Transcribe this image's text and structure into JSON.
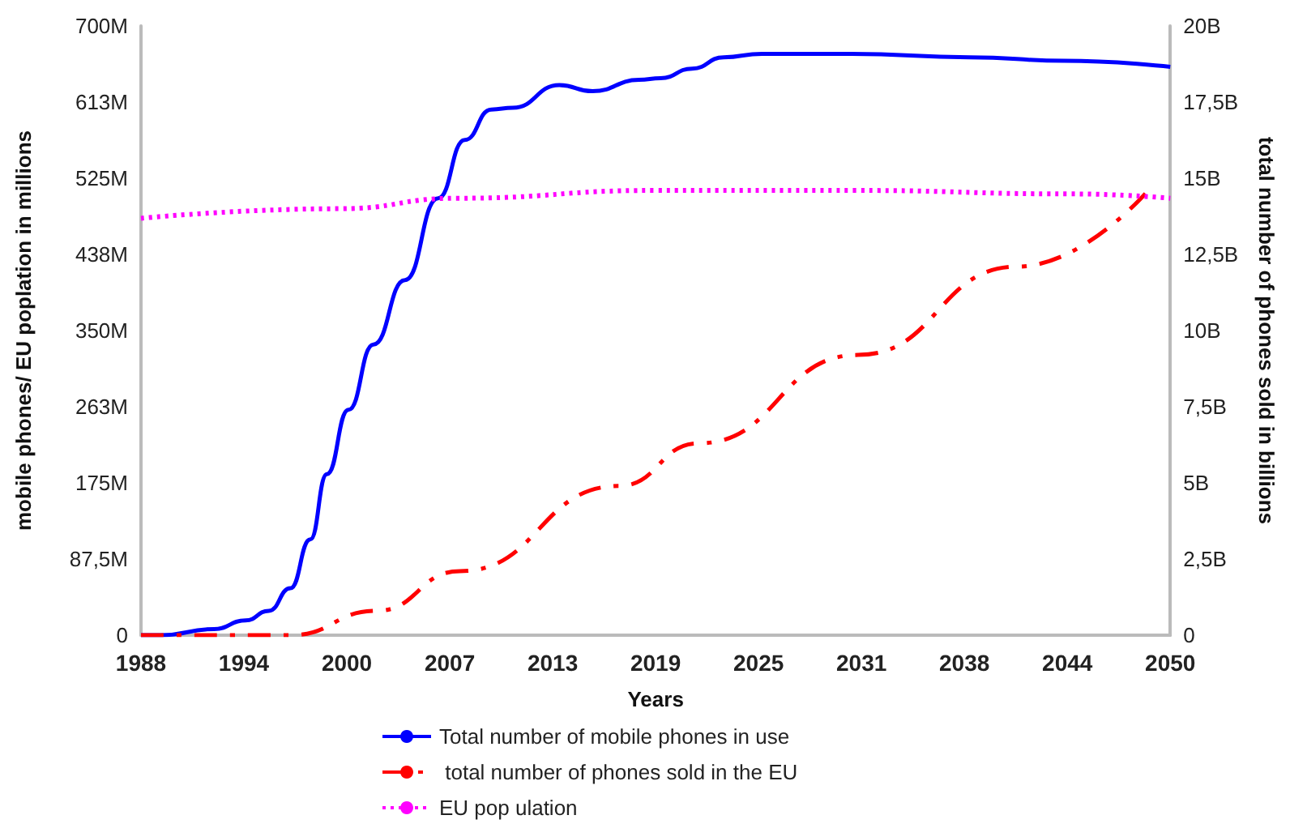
{
  "chart_data": {
    "type": "line",
    "xlabel": "Years",
    "ylabel": "mobile phones/ EU poplation in millions",
    "y2label": "total number of phones sold in billions",
    "xlim": [
      1988,
      2050
    ],
    "xticks": [
      1988,
      {
        "value": 1994.2,
        "label": "1994"
      },
      {
        "value": 2000.4,
        "label": "2000"
      },
      {
        "value": 2006.6,
        "label": "2007"
      },
      {
        "value": 2012.8,
        "label": "2013"
      },
      2019,
      {
        "value": 2025.2,
        "label": "2025"
      },
      {
        "value": 2031.4,
        "label": "2031"
      },
      {
        "value": 2037.6,
        "label": "2038"
      },
      {
        "value": 2043.8,
        "label": "2044"
      },
      2050
    ],
    "ylim": [
      0,
      700
    ],
    "yticks": [
      0,
      {
        "value": 87.5,
        "label": "87,5M"
      },
      {
        "value": 175,
        "label": "175M"
      },
      {
        "value": 262.5,
        "label": "263M"
      },
      {
        "value": 350,
        "label": "350M"
      },
      {
        "value": 437.5,
        "label": "438M"
      },
      {
        "value": 525,
        "label": "525M"
      },
      {
        "value": 612.5,
        "label": "613M"
      },
      {
        "value": 700,
        "label": "700M"
      }
    ],
    "y2lim": [
      0,
      20
    ],
    "y2ticks": [
      0,
      {
        "value": 2.5,
        "label": "2,5B"
      },
      {
        "value": 5,
        "label": "5B"
      },
      {
        "value": 7.5,
        "label": "7,5B"
      },
      {
        "value": 10,
        "label": "10B"
      },
      {
        "value": 12.5,
        "label": "12,5B"
      },
      {
        "value": 15,
        "label": "15B"
      },
      {
        "value": 17.5,
        "label": "17,5B"
      },
      {
        "value": 20,
        "label": "20B"
      }
    ],
    "grid": false,
    "legend": "bottom",
    "marker": "none",
    "series": [
      {
        "name": "Total number of mobile phones in use",
        "color": "#0000ff",
        "line_style": "solid",
        "x": [
          1988,
          1989.2,
          1992.4,
          1994.3,
          1995.7,
          1997,
          1998.2,
          1999.2,
          2000.5,
          2002,
          2003.9,
          2005.9,
          2007.5,
          2009.1,
          2010.4,
          2013.2,
          2015.2,
          2018,
          2019.3,
          2021.2,
          2023.1,
          2025.4,
          2030.8,
          2037.9,
          2043.6,
          2050
        ],
        "values": [
          0,
          0,
          7,
          17,
          28,
          54,
          110,
          185,
          259,
          334,
          408,
          502,
          569,
          604,
          606,
          632,
          625,
          638,
          640,
          651,
          664,
          668,
          668,
          664,
          660,
          653
        ]
      },
      {
        "name": " total number of phones sold in the EU",
        "color": "#ff0000",
        "line_style": "dashed",
        "axis": "y2",
        "x": [
          1988,
          1997,
          2002.2,
          2007.2,
          2016.8,
          2021.6,
          2031.2,
          2040.8,
          2048.5
        ],
        "values": [
          0,
          0,
          0.8,
          2.1,
          4.9,
          6.3,
          9.2,
          12.1,
          14.5
        ]
      },
      {
        "name": "EU pop ulation",
        "color": "#ff00ff",
        "line_style": "dotted",
        "x": [
          1988,
          2000,
          2007,
          2019,
          2031,
          2044,
          2050
        ],
        "values": [
          479,
          490,
          502,
          511,
          511,
          507,
          502
        ]
      }
    ]
  }
}
